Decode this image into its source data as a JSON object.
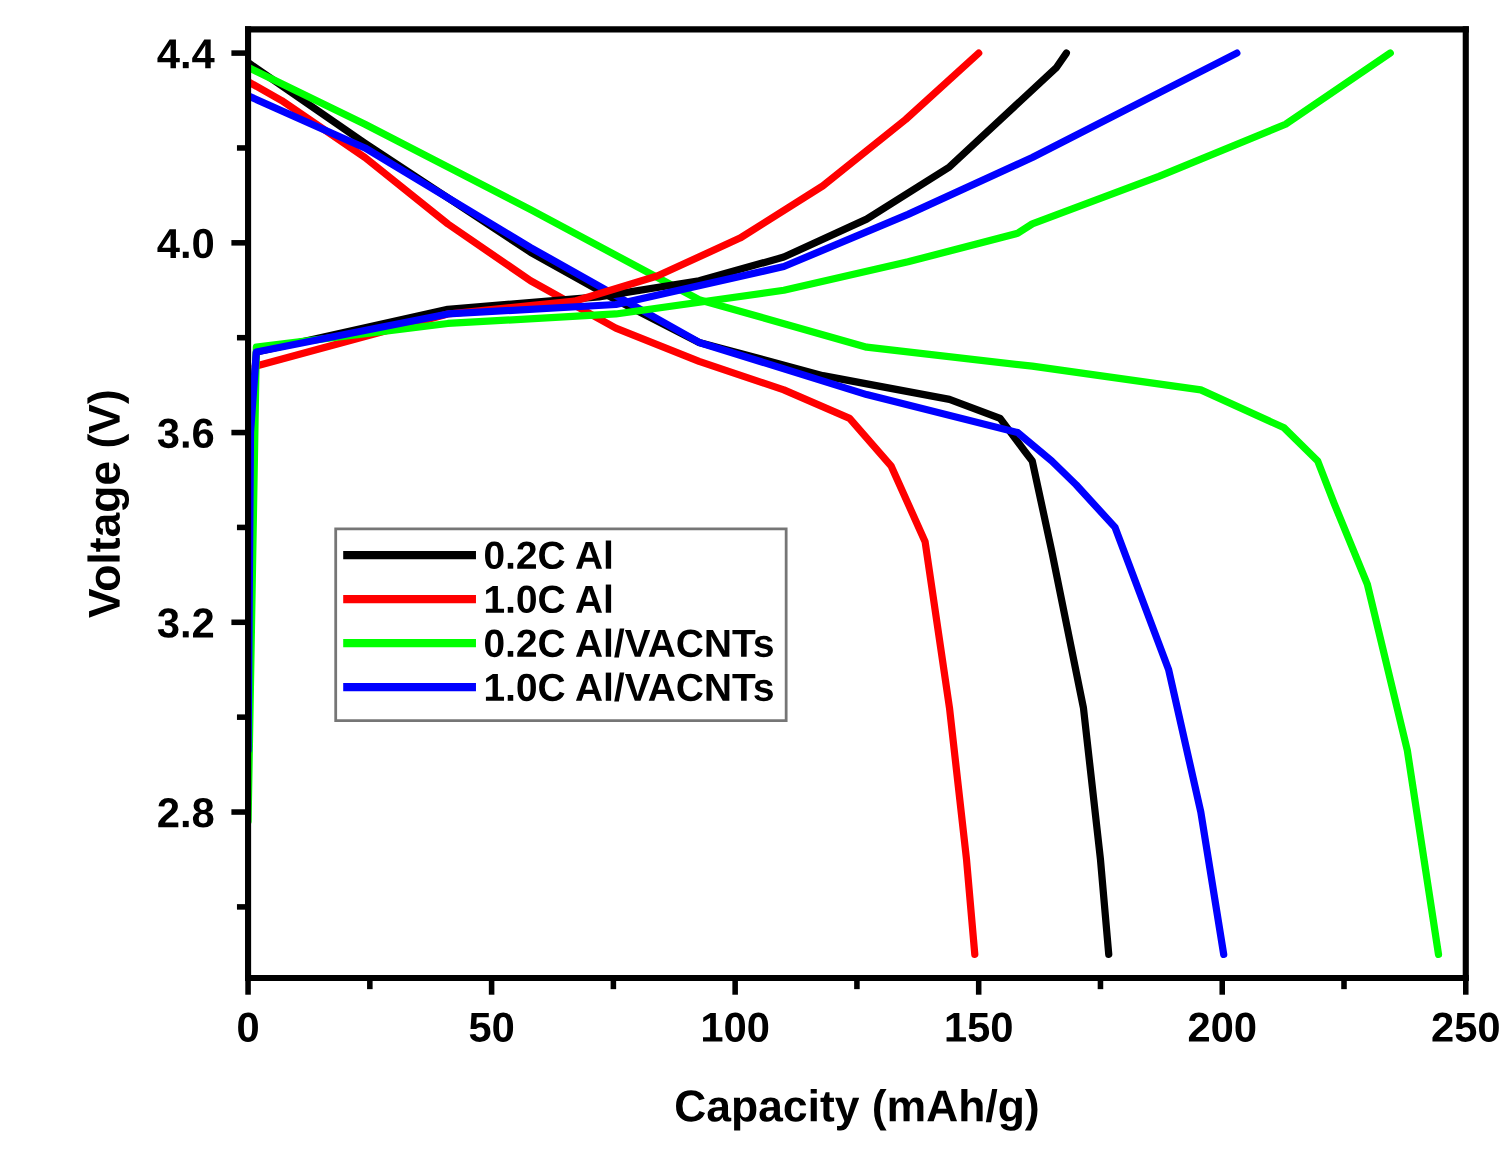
{
  "chart_data": {
    "type": "line",
    "xlabel": "Capacity (mAh/g)",
    "ylabel": "Voltage (V)",
    "xlim": [
      0,
      250
    ],
    "ylim": [
      2.45,
      4.45
    ],
    "xticks": [
      0,
      {
        "value": 25,
        "label": null
      },
      50,
      {
        "value": 75,
        "label": null
      },
      100,
      {
        "value": 125,
        "label": null
      },
      150,
      {
        "value": 175,
        "label": null
      },
      200,
      {
        "value": 225,
        "label": null
      },
      250
    ],
    "yticks": [
      {
        "value": 2.6,
        "label": null
      },
      {
        "value": 2.8,
        "label": "2.8"
      },
      {
        "value": 3.0,
        "label": null
      },
      {
        "value": 3.2,
        "label": "3.2"
      },
      {
        "value": 3.4,
        "label": null
      },
      {
        "value": 3.6,
        "label": "3.6"
      },
      {
        "value": 3.8,
        "label": null
      },
      {
        "value": 4.0,
        "label": "4.0"
      },
      {
        "value": 4.2,
        "label": null
      },
      {
        "value": 4.4,
        "label": "4.4"
      }
    ],
    "grid": false,
    "legend": "left",
    "marker": "none",
    "line_style": "solid",
    "series": [
      {
        "name": "0.2C Al",
        "color": "#000000",
        "x": [
          0,
          24,
          58,
          75.5,
          92.6,
          118,
          144,
          154.4,
          159.5,
          161,
          165,
          171.5,
          175,
          176.7
        ],
        "values": [
          4.38,
          4.21,
          3.98,
          3.88,
          3.79,
          3.72,
          3.67,
          3.63,
          3.56,
          3.54,
          3.35,
          3.02,
          2.7,
          2.5
        ]
      },
      {
        "name": "1.0C Al",
        "color": "#ff0000",
        "x": [
          0,
          6.9,
          24,
          41,
          58,
          75.5,
          92.6,
          110,
          123.5,
          132,
          139,
          144,
          147.5,
          149.2
        ],
        "values": [
          4.34,
          4.3,
          4.18,
          4.04,
          3.92,
          3.82,
          3.75,
          3.69,
          3.63,
          3.53,
          3.37,
          3.02,
          2.7,
          2.5
        ]
      },
      {
        "name": "0.2C Al/VACNTs",
        "color": "#00ff00",
        "x": [
          0,
          24,
          58,
          92.6,
          127,
          161,
          195.6,
          212.7,
          219.6,
          223,
          229.8,
          238,
          244.4
        ],
        "values": [
          4.37,
          4.25,
          4.07,
          3.88,
          3.78,
          3.74,
          3.69,
          3.61,
          3.54,
          3.45,
          3.28,
          2.93,
          2.5
        ]
      },
      {
        "name": "1.0C Al/VACNTs",
        "color": "#0000ff",
        "x": [
          0,
          24,
          58,
          92.6,
          127,
          158,
          165,
          170,
          178,
          189,
          195.6,
          200.3
        ],
        "values": [
          4.31,
          4.2,
          3.99,
          3.79,
          3.68,
          3.6,
          3.54,
          3.49,
          3.4,
          3.1,
          2.8,
          2.5
        ]
      },
      {
        "color": "#000000",
        "x": [
          0,
          0.5,
          1.7,
          41,
          72,
          92.6,
          110,
          127,
          144,
          166,
          168
        ],
        "values": [
          3.0,
          3.6,
          3.77,
          3.86,
          3.886,
          3.92,
          3.97,
          4.05,
          4.16,
          4.37,
          4.4
        ]
      },
      {
        "color": "#ff0000",
        "x": [
          1.5,
          41,
          67,
          84,
          101,
          118,
          135,
          150
        ],
        "values": [
          3.74,
          3.85,
          3.877,
          3.93,
          4.01,
          4.12,
          4.26,
          4.4
        ]
      },
      {
        "color": "#00ff00",
        "x": [
          0,
          1.7,
          41,
          75.5,
          110,
          135.5,
          158,
          161,
          187,
          213,
          234.5
        ],
        "values": [
          2.78,
          3.78,
          3.83,
          3.85,
          3.9,
          3.96,
          4.02,
          4.04,
          4.14,
          4.25,
          4.4
        ]
      },
      {
        "color": "#0000ff",
        "x": [
          0,
          0.5,
          1.7,
          41,
          75.5,
          110,
          135.5,
          161,
          203
        ],
        "values": [
          2.93,
          3.6,
          3.77,
          3.85,
          3.87,
          3.95,
          4.06,
          4.18,
          4.4
        ]
      }
    ]
  }
}
